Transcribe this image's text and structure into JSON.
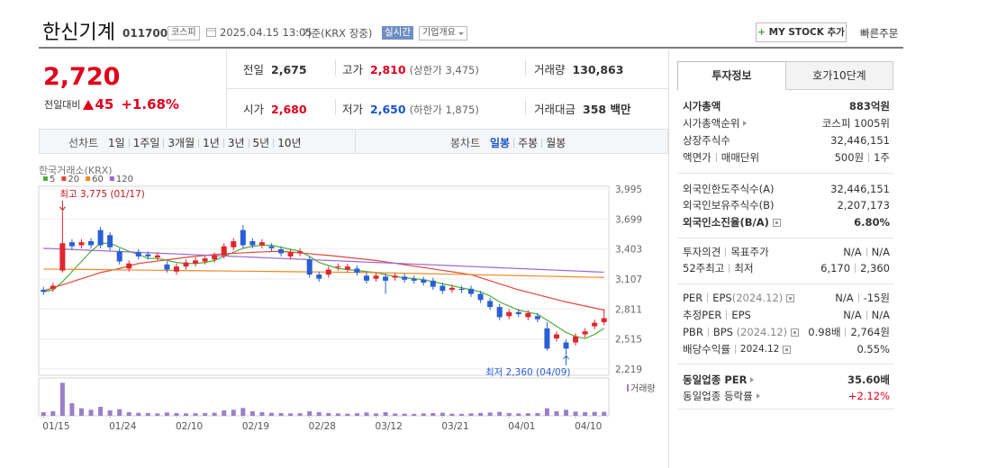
{
  "header": {
    "name": "한신기계",
    "code": "011700",
    "market": "코스피",
    "datetime": "2025.04.15 13:05",
    "basis": "기준(KRX 장중)",
    "realtime": "실시간",
    "company_info": "기업개요",
    "my_stock": "MY STOCK 추가",
    "quick_order": "빠른주문"
  },
  "price": {
    "current": "2,720",
    "change_label": "전일대비",
    "change": "45",
    "change_pct": "+1.68%"
  },
  "summary": [
    {
      "label": "전일",
      "value": "2,675"
    },
    {
      "label": "고가",
      "value": "2,810",
      "note": "(상한가 3,475)"
    },
    {
      "label": "거래량",
      "value": "130,863"
    },
    {
      "label": "시가",
      "value": "2,680"
    },
    {
      "label": "저가",
      "value": "2,650",
      "note": "(하한가 1,875)"
    },
    {
      "label": "거래대금",
      "value": "358 백만"
    }
  ],
  "periods": {
    "label": "선차트",
    "options": [
      "1일",
      "1주일",
      "3개월",
      "1년",
      "3년",
      "5년",
      "10년"
    ]
  },
  "candles": {
    "label": "봉차트",
    "options": [
      "일봉",
      "주봉",
      "월봉"
    ],
    "selected": "일봉"
  },
  "chart_data": {
    "type": "candlestick",
    "source": "한국거래소(KRX)",
    "categories": [
      "01/15",
      null,
      null,
      null,
      null,
      null,
      null,
      "01/24",
      null,
      null,
      null,
      null,
      null,
      null,
      "02/10",
      null,
      null,
      null,
      null,
      null,
      null,
      "02/19",
      null,
      null,
      null,
      null,
      null,
      null,
      "02/28",
      null,
      null,
      null,
      null,
      null,
      null,
      "03/12",
      null,
      null,
      null,
      null,
      null,
      null,
      "03/21",
      null,
      null,
      null,
      null,
      null,
      null,
      "04/01",
      null,
      null,
      null,
      null,
      null,
      null,
      "04/10",
      null,
      null,
      null
    ],
    "open": [
      3000,
      3010,
      3190,
      3470,
      3440,
      3480,
      3590,
      3540,
      3380,
      3210,
      3370,
      3350,
      3320,
      3250,
      3180,
      3230,
      3260,
      3280,
      3300,
      3340,
      3420,
      3590,
      3480,
      3440,
      3430,
      3400,
      3330,
      3360,
      3300,
      3150,
      3150,
      3220,
      3200,
      3210,
      3140,
      3110,
      3130,
      3120,
      3130,
      3110,
      3100,
      3090,
      3040,
      3000,
      3010,
      3010,
      2960,
      2890,
      2830,
      2740,
      2780,
      2730,
      2740,
      2620,
      2520,
      2480,
      2480,
      2560,
      2640,
      2680
    ],
    "high": [
      3030,
      3070,
      3775,
      3500,
      3500,
      3510,
      3620,
      3570,
      3410,
      3290,
      3400,
      3380,
      3370,
      3280,
      3260,
      3300,
      3320,
      3340,
      3370,
      3460,
      3510,
      3640,
      3510,
      3500,
      3460,
      3430,
      3400,
      3410,
      3330,
      3180,
      3230,
      3260,
      3260,
      3240,
      3170,
      3170,
      3160,
      3170,
      3160,
      3140,
      3130,
      3120,
      3070,
      3050,
      3040,
      3040,
      2990,
      2920,
      2860,
      2810,
      2810,
      2800,
      2770,
      2680,
      2590,
      2510,
      2570,
      2620,
      2705,
      2810
    ],
    "low": [
      2950,
      2980,
      3170,
      3400,
      3410,
      3410,
      3410,
      3390,
      3250,
      3180,
      3300,
      3300,
      3290,
      3170,
      3150,
      3200,
      3230,
      3250,
      3270,
      3310,
      3390,
      3410,
      3410,
      3410,
      3380,
      3330,
      3300,
      3330,
      3120,
      3080,
      3120,
      3190,
      3170,
      3140,
      3060,
      3080,
      2960,
      3090,
      3070,
      3060,
      3040,
      3000,
      2960,
      2970,
      2970,
      2930,
      2870,
      2800,
      2700,
      2710,
      2730,
      2700,
      2680,
      2400,
      2490,
      2360,
      2450,
      2530,
      2610,
      2650
    ],
    "close": [
      2980,
      3040,
      3460,
      3430,
      3470,
      3440,
      3440,
      3420,
      3280,
      3260,
      3330,
      3330,
      3340,
      3200,
      3230,
      3270,
      3290,
      3310,
      3340,
      3430,
      3480,
      3440,
      3440,
      3470,
      3410,
      3360,
      3370,
      3380,
      3150,
      3110,
      3200,
      3230,
      3230,
      3170,
      3090,
      3140,
      3090,
      3140,
      3100,
      3090,
      3070,
      3030,
      2990,
      3020,
      3000,
      2960,
      2900,
      2830,
      2730,
      2780,
      2760,
      2770,
      2710,
      2420,
      2560,
      2420,
      2540,
      2590,
      2675,
      2720
    ],
    "up_color": "#e0262d",
    "down_color": "#2a5fd6",
    "ylim": [
      2156,
      4022
    ],
    "yticks": [
      {
        "value": 3995,
        "label": "3,995"
      },
      {
        "value": 3699,
        "label": "3,699"
      },
      {
        "value": 3403,
        "label": "3,403"
      },
      {
        "value": 3107,
        "label": "3,107"
      },
      {
        "value": 2811,
        "label": "2,811"
      },
      {
        "value": 2515,
        "label": "2,515"
      },
      {
        "value": 2219,
        "label": "2,219"
      }
    ],
    "grid": true,
    "ma": [
      {
        "name": "5",
        "color": "#4cb03a",
        "values": [
          2980,
          3000,
          3080,
          3180,
          3280,
          3380,
          3460,
          3460,
          3420,
          3380,
          3350,
          3310,
          3310,
          3290,
          3270,
          3260,
          3260,
          3270,
          3290,
          3330,
          3370,
          3410,
          3430,
          3440,
          3440,
          3420,
          3400,
          3380,
          3330,
          3270,
          3240,
          3210,
          3200,
          3190,
          3180,
          3170,
          3150,
          3130,
          3120,
          3110,
          3100,
          3080,
          3060,
          3040,
          3020,
          3000,
          2980,
          2940,
          2880,
          2840,
          2800,
          2780,
          2760,
          2700,
          2640,
          2580,
          2540,
          2520,
          2560,
          2620
        ]
      },
      {
        "name": "20",
        "color": "#e5473d",
        "values": [
          2990,
          3020,
          3050,
          3080,
          3110,
          3140,
          3170,
          3190,
          3210,
          3235,
          3260,
          3272,
          3284,
          3296,
          3308,
          3320,
          3330,
          3340,
          3348,
          3355,
          3360,
          3365,
          3370,
          3374,
          3378,
          3380,
          3372,
          3364,
          3356,
          3348,
          3340,
          3330,
          3320,
          3310,
          3300,
          3290,
          3276,
          3262,
          3248,
          3234,
          3220,
          3206,
          3192,
          3178,
          3164,
          3150,
          3120,
          3090,
          3060,
          3030,
          3000,
          2976,
          2952,
          2928,
          2904,
          2880,
          2860,
          2840,
          2820,
          2800
        ]
      },
      {
        "name": "60",
        "color": "#f08a24",
        "values": [
          3205,
          3204,
          3203,
          3202,
          3201,
          3200,
          3199,
          3198,
          3197,
          3196,
          3195,
          3194,
          3193,
          3192,
          3191,
          3190,
          3189,
          3188,
          3187,
          3186,
          3185,
          3184,
          3183,
          3182,
          3181,
          3180,
          3179,
          3178,
          3177,
          3176,
          3175,
          3174,
          3173,
          3172,
          3171,
          3170,
          3168,
          3166,
          3164,
          3162,
          3160,
          3158,
          3156,
          3154,
          3152,
          3150,
          3148,
          3146,
          3144,
          3142,
          3140,
          3138,
          3136,
          3134,
          3132,
          3130,
          3128,
          3126,
          3124,
          3122
        ]
      },
      {
        "name": "120",
        "color": "#9a68d2",
        "values": [
          3410,
          3406,
          3402,
          3398,
          3394,
          3390,
          3386,
          3382,
          3378,
          3374,
          3370,
          3366,
          3362,
          3358,
          3354,
          3350,
          3346,
          3342,
          3338,
          3334,
          3330,
          3326,
          3322,
          3318,
          3314,
          3310,
          3306,
          3302,
          3298,
          3294,
          3290,
          3286,
          3282,
          3278,
          3274,
          3270,
          3266,
          3262,
          3258,
          3254,
          3250,
          3246,
          3242,
          3238,
          3234,
          3230,
          3226,
          3222,
          3218,
          3214,
          3210,
          3206,
          3202,
          3198,
          3194,
          3190,
          3186,
          3182,
          3178,
          3174
        ]
      }
    ],
    "annotations": [
      {
        "text": "최고 3,775 (01/17)",
        "value": 3775,
        "color": "#c8161d"
      },
      {
        "text": "최저 2,360 (04/09)",
        "value": 2360,
        "color": "#2a5fd6"
      }
    ],
    "volume_label": "거래량",
    "volume_color": "#9b7fc9",
    "volume": [
      120000,
      150000,
      1100000,
      420000,
      250000,
      200000,
      300000,
      180000,
      220000,
      120000,
      100000,
      90000,
      80000,
      110000,
      90000,
      80000,
      85000,
      90000,
      100000,
      180000,
      200000,
      260000,
      150000,
      120000,
      100000,
      90000,
      80000,
      85000,
      150000,
      120000,
      90000,
      80000,
      70000,
      85000,
      110000,
      80000,
      120000,
      75000,
      70000,
      65000,
      80000,
      90000,
      100000,
      70000,
      65000,
      80000,
      95000,
      110000,
      130000,
      90000,
      80000,
      85000,
      90000,
      250000,
      150000,
      200000,
      140000,
      120000,
      130000,
      130863
    ],
    "vlim": [
      0,
      1200000
    ]
  },
  "invest": {
    "tabs": [
      "투자정보",
      "호가10단계"
    ],
    "sections": [
      [
        {
          "label": [
            "시가총액"
          ],
          "value": [
            "883억원"
          ]
        },
        {
          "label": [
            "시가총액순위"
          ],
          "value": [
            "코스피 1005위"
          ]
        },
        {
          "label": [
            "상장주식수"
          ],
          "value": [
            "32,446,151"
          ]
        },
        {
          "label": [
            "액면가",
            "매매단위"
          ],
          "value": [
            "500원",
            "1주"
          ]
        }
      ],
      [
        {
          "label": [
            "외국인한도주식수(A)"
          ],
          "value": [
            "32,446,151"
          ]
        },
        {
          "label": [
            "외국인보유주식수(B)"
          ],
          "value": [
            "2,207,173"
          ]
        },
        {
          "label": [
            "외국인소진율(B/A)"
          ],
          "value": [
            "6.80%"
          ]
        }
      ],
      [
        {
          "label": [
            "투자의견",
            "목표주가"
          ],
          "value": [
            "N/A",
            "N/A"
          ]
        },
        {
          "label": [
            "52주최고",
            "최저"
          ],
          "value": [
            "6,170",
            "2,360"
          ]
        }
      ],
      [
        {
          "label": [
            "PER",
            "EPS",
            "(2024.12)"
          ],
          "value": [
            "N/A",
            "-15원"
          ]
        },
        {
          "label": [
            "추정PER",
            "EPS"
          ],
          "value": [
            "N/A",
            "N/A"
          ]
        },
        {
          "label": [
            "PBR",
            "BPS",
            "(2024.12)"
          ],
          "value": [
            "0.98배",
            "2,764원"
          ]
        },
        {
          "label": [
            "배당수익률",
            "2024.12"
          ],
          "value": [
            "0.55%"
          ]
        }
      ],
      [
        {
          "label": [
            "동일업종 PER"
          ],
          "value": [
            "35.60배"
          ]
        },
        {
          "label": [
            "동일업종 등락률"
          ],
          "value": [
            "+2.12%"
          ]
        }
      ]
    ]
  }
}
